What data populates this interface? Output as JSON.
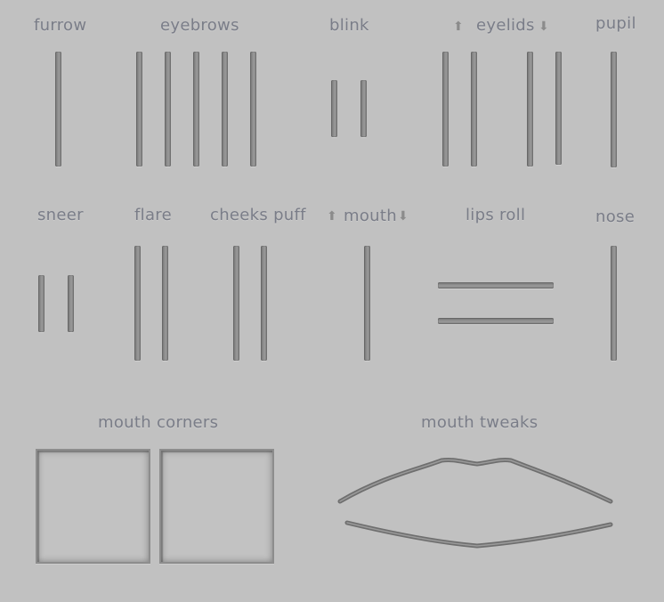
{
  "labels": {
    "furrow": "furrow",
    "eyebrows": "eyebrows",
    "blink": "blink",
    "eyelids": "eyelids",
    "pupil": "pupil",
    "sneer": "sneer",
    "flare": "flare",
    "cheeks_puff": "cheeks puff",
    "mouth": "mouth",
    "lips_roll": "lips roll",
    "nose": "nose",
    "mouth_corners": "mouth corners",
    "mouth_tweaks": "mouth tweaks"
  },
  "icons": {
    "up": "⬆",
    "down": "⬇"
  },
  "colors": {
    "background": "#c1c1c1",
    "label": "#7a7d88",
    "slot": "#8b8b8b",
    "lip_stroke": "#7a7a7a"
  }
}
